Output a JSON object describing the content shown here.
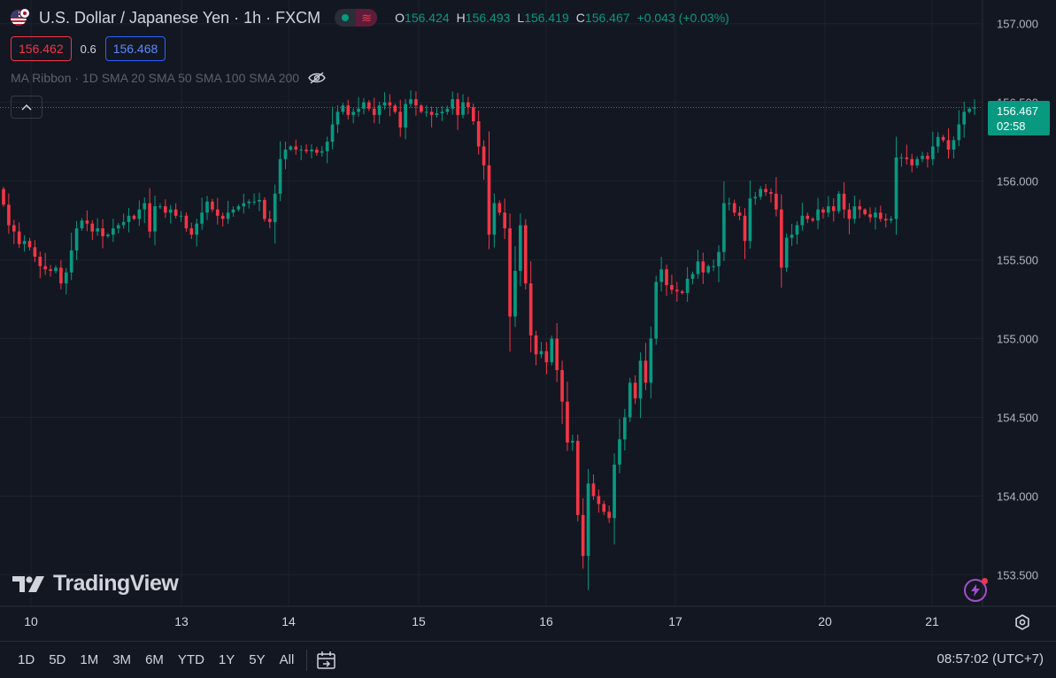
{
  "header": {
    "symbol": "U.S. Dollar / Japanese Yen · 1h · FXCM",
    "live_icon": "live-dot-icon",
    "wave_icon": "≋",
    "ohlc": {
      "o_label": "O",
      "o": "156.424",
      "h_label": "H",
      "h": "156.493",
      "l_label": "L",
      "l": "156.419",
      "c_label": "C",
      "c": "156.467",
      "change": "+0.043 (+0.03%)"
    }
  },
  "trade": {
    "sell": "156.462",
    "spread": "0.6",
    "buy": "156.468"
  },
  "indicator": {
    "name": "MA Ribbon · 1D SMA 20 SMA 50 SMA 100 SMA 200",
    "icon": "eye-off-icon"
  },
  "collapse_icon": "chevron-up-icon",
  "logo": {
    "text": "TradingView"
  },
  "last_price": {
    "price": "156.467",
    "countdown": "02:58"
  },
  "time_ranges": [
    "1D",
    "5D",
    "1M",
    "3M",
    "6M",
    "YTD",
    "1Y",
    "5Y",
    "All"
  ],
  "clock": "08:57:02 (UTC+7)",
  "colors": {
    "up": "#089981",
    "down": "#f23645",
    "background": "#131722",
    "grid": "#1e222d"
  },
  "chart_data": {
    "type": "candlestick",
    "title": "U.S. Dollar / Japanese Yen · 1h · FXCM",
    "interval": "1h",
    "ylim": [
      153.3,
      157.15
    ],
    "y_ticks": [
      "153.500",
      "154.000",
      "154.500",
      "155.000",
      "155.500",
      "156.000",
      "156.500",
      "157.000"
    ],
    "x_ticks": [
      "10",
      "13",
      "14",
      "15",
      "16",
      "17",
      "20",
      "21"
    ],
    "last_price": 156.467,
    "legend": "none",
    "grid": true,
    "close": [
      155.85,
      155.72,
      155.68,
      155.6,
      155.62,
      155.58,
      155.52,
      155.46,
      155.44,
      155.43,
      155.45,
      155.35,
      155.42,
      155.56,
      155.7,
      155.75,
      155.73,
      155.68,
      155.7,
      155.65,
      155.66,
      155.7,
      155.72,
      155.74,
      155.78,
      155.76,
      155.82,
      155.86,
      155.68,
      155.84,
      155.84,
      155.8,
      155.82,
      155.78,
      155.78,
      155.7,
      155.66,
      155.73,
      155.8,
      155.87,
      155.82,
      155.78,
      155.76,
      155.8,
      155.82,
      155.84,
      155.86,
      155.87,
      155.87,
      155.88,
      155.76,
      155.74,
      155.92,
      156.14,
      156.2,
      156.22,
      156.2,
      156.2,
      156.19,
      156.2,
      156.18,
      156.19,
      156.25,
      156.36,
      156.44,
      156.48,
      156.42,
      156.44,
      156.46,
      156.5,
      156.46,
      156.42,
      156.48,
      156.5,
      156.48,
      156.44,
      156.34,
      156.49,
      156.52,
      156.48,
      156.44,
      156.44,
      156.42,
      156.43,
      156.44,
      156.46,
      156.52,
      156.42,
      156.5,
      156.47,
      156.38,
      156.22,
      156.1,
      155.66,
      155.86,
      155.8,
      155.7,
      155.14,
      155.43,
      155.72,
      155.35,
      155.02,
      154.9,
      154.92,
      154.85,
      155.0,
      154.8,
      154.6,
      154.34,
      154.35,
      153.88,
      153.62,
      154.08,
      154.0,
      153.95,
      153.9,
      153.86,
      154.2,
      154.36,
      154.5,
      154.72,
      154.62,
      154.86,
      154.72,
      155.0,
      155.36,
      155.44,
      155.34,
      155.31,
      155.3,
      155.29,
      155.38,
      155.41,
      155.49,
      155.42,
      155.46,
      155.46,
      155.55,
      155.86,
      155.86,
      155.8,
      155.78,
      155.62,
      155.89,
      155.9,
      155.95,
      155.93,
      155.92,
      155.82,
      155.45,
      155.64,
      155.66,
      155.72,
      155.78,
      155.76,
      155.75,
      155.82,
      155.8,
      155.84,
      155.81,
      155.92,
      155.82,
      155.76,
      155.84,
      155.82,
      155.79,
      155.77,
      155.8,
      155.76,
      155.75,
      155.76,
      156.15,
      156.15,
      156.14,
      156.1,
      156.14,
      156.16,
      156.14,
      156.22,
      156.28,
      156.26,
      156.2,
      156.26,
      156.36,
      156.44,
      156.46,
      156.467
    ]
  }
}
